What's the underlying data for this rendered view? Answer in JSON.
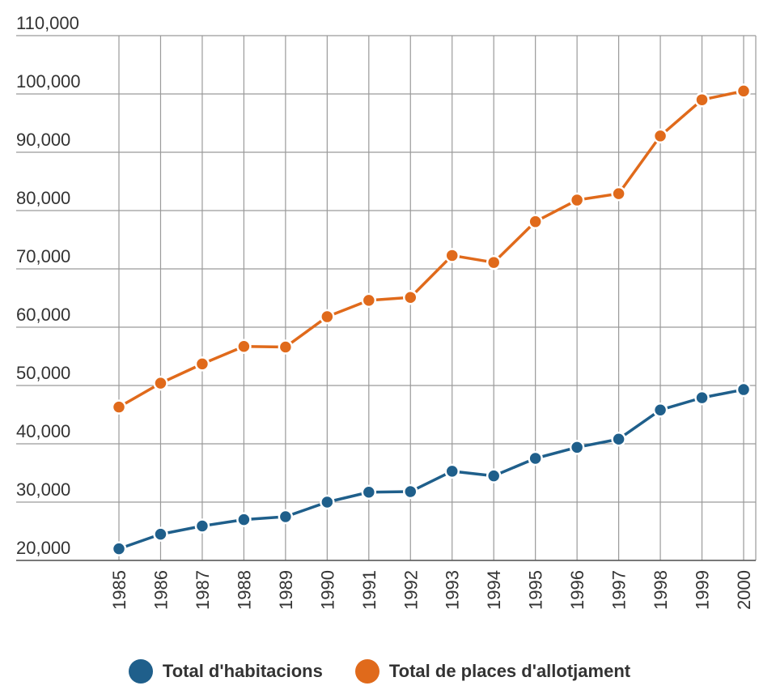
{
  "chart_data": {
    "type": "line",
    "title": "",
    "xlabel": "",
    "ylabel": "",
    "categories": [
      "1985",
      "1986",
      "1987",
      "1988",
      "1989",
      "1990",
      "1991",
      "1992",
      "1993",
      "1994",
      "1995",
      "1996",
      "1997",
      "1998",
      "1999",
      "2000"
    ],
    "ylim": [
      20000,
      110000
    ],
    "yticks": [
      20000,
      30000,
      40000,
      50000,
      60000,
      70000,
      80000,
      90000,
      100000,
      110000
    ],
    "ytick_labels": [
      "20,000",
      "30,000",
      "40,000",
      "50,000",
      "60,000",
      "70,000",
      "80,000",
      "90,000",
      "100,000",
      "110,000"
    ],
    "grid": true,
    "legend_position": "bottom",
    "series": [
      {
        "name": "Total d'habitacions",
        "color": "#1f5f8b",
        "values": [
          22000,
          24500,
          25900,
          27000,
          27500,
          30000,
          31700,
          31800,
          35300,
          34500,
          37500,
          39400,
          40800,
          45800,
          47900,
          49300
        ]
      },
      {
        "name": "Total de places d'allotjament",
        "color": "#e06a1b",
        "values": [
          46300,
          50400,
          53700,
          56700,
          56600,
          61800,
          64600,
          65100,
          72300,
          71100,
          78100,
          81800,
          82900,
          92800,
          99000,
          100500
        ]
      }
    ]
  }
}
